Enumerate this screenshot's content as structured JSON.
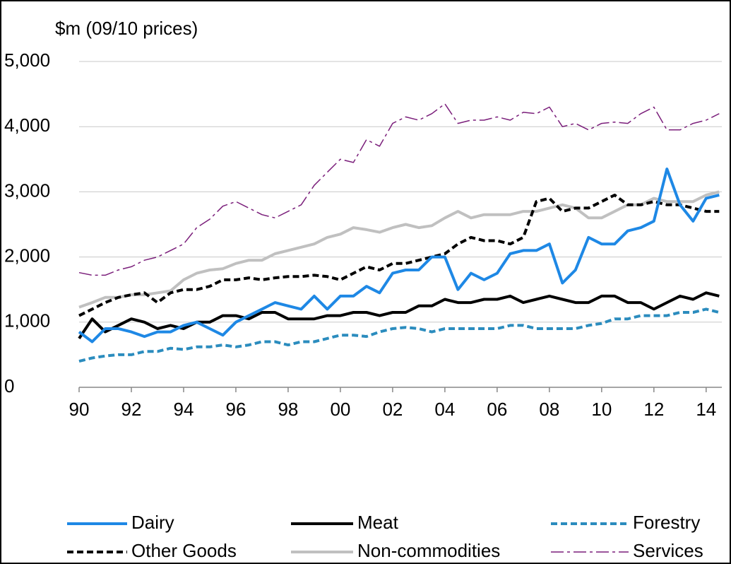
{
  "chart_data": {
    "type": "line",
    "y_label": "$m (09/10 prices)",
    "x": [
      1990,
      1990.5,
      1991,
      1991.5,
      1992,
      1992.5,
      1993,
      1993.5,
      1994,
      1994.5,
      1995,
      1995.5,
      1996,
      1996.5,
      1997,
      1997.5,
      1998,
      1998.5,
      1999,
      1999.5,
      2000,
      2000.5,
      2001,
      2001.5,
      2002,
      2002.5,
      2003,
      2003.5,
      2004,
      2004.5,
      2005,
      2005.5,
      2006,
      2006.5,
      2007,
      2007.5,
      2008,
      2008.5,
      2009,
      2009.5,
      2010,
      2010.5,
      2011,
      2011.5,
      2012,
      2012.5,
      2013,
      2013.5,
      2014,
      2014.5
    ],
    "series": [
      {
        "name": "Dairy",
        "color": "#1e88e5",
        "dash": "solid",
        "width": 4,
        "values": [
          850,
          700,
          900,
          900,
          850,
          780,
          850,
          850,
          950,
          1000,
          900,
          800,
          1000,
          1100,
          1200,
          1300,
          1250,
          1200,
          1400,
          1200,
          1400,
          1400,
          1550,
          1450,
          1750,
          1800,
          1800,
          2000,
          2000,
          1500,
          1750,
          1650,
          1750,
          2050,
          2100,
          2100,
          2200,
          1600,
          1800,
          2300,
          2200,
          2200,
          2400,
          2450,
          2550,
          3350,
          2800,
          2550,
          2900,
          2950
        ]
      },
      {
        "name": "Meat",
        "color": "#000000",
        "dash": "solid",
        "width": 4,
        "values": [
          750,
          1050,
          850,
          950,
          1050,
          1000,
          900,
          950,
          900,
          1000,
          1000,
          1100,
          1100,
          1050,
          1150,
          1150,
          1050,
          1050,
          1050,
          1100,
          1100,
          1150,
          1150,
          1100,
          1150,
          1150,
          1250,
          1250,
          1350,
          1300,
          1300,
          1350,
          1350,
          1400,
          1300,
          1350,
          1400,
          1350,
          1300,
          1300,
          1400,
          1400,
          1300,
          1300,
          1200,
          1300,
          1400,
          1350,
          1450,
          1400
        ]
      },
      {
        "name": "Forestry",
        "color": "#2b8cbe",
        "dash": "dashed",
        "width": 4,
        "values": [
          400,
          450,
          480,
          500,
          500,
          550,
          550,
          600,
          580,
          620,
          620,
          650,
          620,
          650,
          700,
          700,
          650,
          700,
          700,
          750,
          800,
          800,
          780,
          850,
          900,
          920,
          900,
          850,
          900,
          900,
          900,
          900,
          900,
          950,
          950,
          900,
          900,
          900,
          900,
          950,
          980,
          1050,
          1050,
          1100,
          1100,
          1100,
          1150,
          1150,
          1200,
          1150
        ]
      },
      {
        "name": "Other Goods",
        "color": "#000000",
        "dash": "dashed",
        "width": 4,
        "values": [
          1100,
          1200,
          1300,
          1380,
          1420,
          1450,
          1300,
          1450,
          1500,
          1500,
          1550,
          1650,
          1650,
          1680,
          1650,
          1680,
          1700,
          1700,
          1720,
          1700,
          1650,
          1750,
          1850,
          1800,
          1900,
          1900,
          1950,
          2000,
          2050,
          2200,
          2300,
          2250,
          2250,
          2200,
          2300,
          2850,
          2900,
          2700,
          2750,
          2750,
          2850,
          2950,
          2800,
          2800,
          2850,
          2800,
          2800,
          2750,
          2700,
          2700
        ]
      },
      {
        "name": "Non-commodities",
        "color": "#c0c0c0",
        "dash": "solid",
        "width": 4,
        "values": [
          1230,
          1300,
          1380,
          1380,
          1420,
          1420,
          1450,
          1480,
          1650,
          1750,
          1800,
          1820,
          1900,
          1950,
          1950,
          2050,
          2100,
          2150,
          2200,
          2300,
          2350,
          2450,
          2420,
          2380,
          2450,
          2500,
          2450,
          2480,
          2600,
          2700,
          2600,
          2650,
          2650,
          2650,
          2700,
          2700,
          2750,
          2800,
          2750,
          2600,
          2600,
          2700,
          2800,
          2800,
          2900,
          2850,
          2850,
          2850,
          2950,
          3000
        ]
      },
      {
        "name": "Services",
        "color": "#7b1f7b",
        "dash": "dashdot",
        "width": 1.5,
        "values": [
          1760,
          1720,
          1720,
          1800,
          1850,
          1950,
          2000,
          2100,
          2200,
          2450,
          2580,
          2780,
          2850,
          2750,
          2650,
          2600,
          2700,
          2800,
          3100,
          3300,
          3500,
          3450,
          3800,
          3700,
          4050,
          4150,
          4100,
          4200,
          4350,
          4050,
          4100,
          4100,
          4150,
          4100,
          4220,
          4200,
          4300,
          4000,
          4050,
          3950,
          4050,
          4070,
          4050,
          4200,
          4300,
          3950,
          3950,
          4050,
          4100,
          4200
        ]
      }
    ],
    "xlim": [
      1990,
      2014.6
    ],
    "xticks": [
      {
        "value": 1990,
        "label": "90"
      },
      {
        "value": 1992,
        "label": "92"
      },
      {
        "value": 1994,
        "label": "94"
      },
      {
        "value": 1996,
        "label": "96"
      },
      {
        "value": 1998,
        "label": "98"
      },
      {
        "value": 2000,
        "label": "00"
      },
      {
        "value": 2002,
        "label": "02"
      },
      {
        "value": 2004,
        "label": "04"
      },
      {
        "value": 2006,
        "label": "06"
      },
      {
        "value": 2008,
        "label": "08"
      },
      {
        "value": 2010,
        "label": "10"
      },
      {
        "value": 2012,
        "label": "12"
      },
      {
        "value": 2014,
        "label": "14"
      }
    ],
    "ylim": [
      0,
      5000
    ],
    "yticks": [
      0,
      {
        "value": 1000,
        "label": "1,000"
      },
      {
        "value": 2000,
        "label": "2,000"
      },
      {
        "value": 3000,
        "label": "3,000"
      },
      {
        "value": 4000,
        "label": "4,000"
      },
      {
        "value": 5000,
        "label": "5,000"
      }
    ],
    "grid": true
  }
}
